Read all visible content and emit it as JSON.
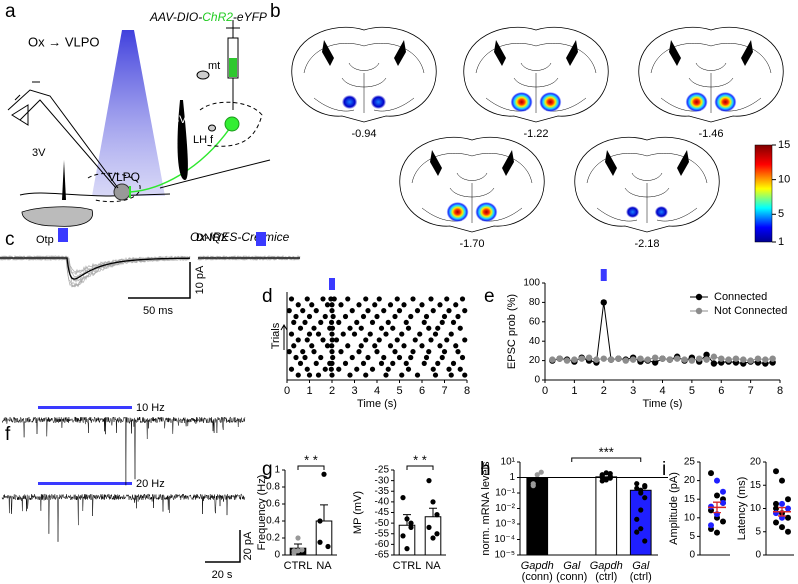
{
  "panel_letters": [
    "a",
    "b",
    "c",
    "d",
    "e",
    "f",
    "g",
    "h",
    "i"
  ],
  "schematic": {
    "title": "Ox → VLPO",
    "vector": [
      "AAV-DIO-",
      "ChR2",
      "-eYFP"
    ],
    "labels": [
      "mt",
      "3V",
      "LH",
      "f",
      "3V",
      "VLPO",
      "Otp"
    ],
    "mouse": "Ox-IRES-Cre mice"
  },
  "atlas": {
    "bregma": [
      "-0.94",
      "-1.22",
      "-1.46",
      "-1.70",
      "-2.18"
    ],
    "colorbar": {
      "lim": [
        1,
        15
      ],
      "ticks": [
        1,
        5,
        10,
        15
      ]
    }
  },
  "traces": {
    "drug": "DNQX",
    "scale_y": "10 pA",
    "scale_x": "50 ms"
  },
  "long_traces": {
    "freqs": [
      "10 Hz",
      "20 Hz"
    ],
    "scale_y": "20 pA",
    "scale_x": "20 s"
  },
  "chart_data": [
    {
      "type": "raster",
      "xlabel": "Time (s)",
      "ylabel": "Trials",
      "xlim": [
        0,
        8
      ],
      "xticks": [
        0,
        1,
        2,
        3,
        4,
        5,
        6,
        7,
        8
      ],
      "stimulus": 2,
      "trials": [
        [
          0.2,
          0.9,
          1.6,
          1.95,
          2.1,
          2.7,
          3.5,
          4.1,
          4.9,
          5.6,
          6.4,
          7.1,
          7.8
        ],
        [
          0.5,
          1.1,
          1.8,
          2.0,
          2.4,
          3.2,
          3.9,
          4.6,
          5.2,
          6.0,
          6.8,
          7.5
        ],
        [
          0.1,
          0.7,
          1.3,
          2.0,
          2.9,
          3.6,
          4.3,
          5.0,
          5.8,
          6.5,
          7.2,
          7.9
        ],
        [
          0.4,
          1.0,
          1.7,
          2.05,
          2.6,
          3.4,
          4.0,
          4.8,
          5.5,
          6.2,
          7.0,
          7.6
        ],
        [
          0.3,
          0.8,
          1.5,
          1.98,
          2.3,
          3.1,
          3.8,
          4.5,
          5.3,
          6.1,
          6.9,
          7.4
        ],
        [
          0.6,
          1.2,
          1.9,
          2.02,
          2.8,
          3.3,
          4.2,
          4.7,
          5.4,
          6.3,
          6.7,
          7.7
        ],
        [
          0.2,
          1.0,
          1.4,
          2.0,
          2.5,
          3.0,
          3.7,
          4.4,
          5.1,
          5.9,
          6.6,
          7.3
        ],
        [
          0.5,
          0.9,
          1.6,
          2.01,
          2.2,
          3.5,
          4.1,
          4.9,
          5.7,
          6.4,
          7.1,
          7.9
        ],
        [
          0.3,
          1.1,
          1.8,
          1.99,
          2.7,
          3.3,
          3.9,
          4.6,
          5.2,
          6.0,
          6.8,
          7.5
        ],
        [
          0.1,
          0.7,
          1.2,
          2.0,
          2.4,
          3.2,
          4.0,
          4.8,
          5.6,
          6.3,
          7.0,
          7.6
        ],
        [
          0.4,
          0.8,
          1.5,
          2.03,
          2.9,
          3.6,
          4.3,
          5.0,
          5.5,
          6.2,
          6.9,
          7.8
        ],
        [
          0.6,
          1.3,
          1.9,
          2.0,
          2.6,
          3.4,
          4.2,
          4.7,
          5.3,
          6.1,
          6.7,
          7.4
        ],
        [
          0.2,
          0.9,
          1.7,
          1.97,
          2.3,
          3.1,
          3.8,
          4.5,
          5.4,
          6.5,
          7.2,
          7.7
        ],
        [
          0.5,
          1.0,
          1.4,
          2.0,
          2.8,
          3.5,
          4.4,
          5.1,
          5.8,
          6.6,
          7.3,
          7.9
        ]
      ]
    },
    {
      "type": "line",
      "ylabel": "EPSC prob (%)",
      "xlabel": "Time (s)",
      "xlim": [
        0,
        8
      ],
      "xticks": [
        0,
        1,
        2,
        3,
        4,
        5,
        6,
        7,
        8
      ],
      "ylim": [
        0,
        100
      ],
      "yticks": [
        0,
        20,
        40,
        60,
        80,
        100
      ],
      "stimulus": 2,
      "x": [
        0.25,
        0.5,
        0.75,
        1,
        1.25,
        1.5,
        1.75,
        2,
        2.25,
        2.5,
        2.75,
        3,
        3.25,
        3.5,
        3.75,
        4,
        4.25,
        4.5,
        4.75,
        5,
        5.25,
        5.5,
        5.75,
        6,
        6.25,
        6.5,
        6.75,
        7,
        7.25,
        7.5,
        7.75
      ],
      "series": [
        {
          "name": "Connected",
          "color": "#000000",
          "values": [
            20,
            22,
            21,
            19,
            23,
            20,
            18,
            80,
            21,
            22,
            21,
            23,
            19,
            20,
            18,
            22,
            21,
            24,
            20,
            23,
            19,
            26,
            17,
            18,
            19,
            18,
            17,
            19,
            18,
            17,
            18
          ]
        },
        {
          "name": "Not Connected",
          "color": "#8c8c8c",
          "values": [
            21,
            22,
            20,
            21,
            22,
            23,
            21,
            22,
            21,
            22,
            20,
            21,
            22,
            21,
            23,
            22,
            21,
            22,
            21,
            20,
            22,
            21,
            24,
            22,
            21,
            22,
            21,
            20,
            22,
            21,
            22
          ]
        }
      ]
    },
    {
      "type": "bar",
      "ylabel": "Frequency (Hz)",
      "categories": [
        "CTRL",
        "NA"
      ],
      "values": [
        0.08,
        0.4
      ],
      "errors": [
        0.05,
        0.19
      ],
      "colors": [
        "#000000",
        "#ffffff"
      ],
      "points": [
        [
          0.05,
          0.2,
          0.06,
          0.02,
          0.05
        ],
        [
          0.15,
          0.95,
          0.1,
          0.4
        ]
      ],
      "ylim": [
        0,
        1
      ],
      "yticks": [
        0,
        0.2,
        0.4,
        0.6,
        0.8,
        1
      ],
      "significance": "* *"
    },
    {
      "type": "bar",
      "ylabel": "MP (mV)",
      "categories": [
        "CTRL",
        "NA"
      ],
      "values": [
        -51,
        -47
      ],
      "errors": [
        5,
        4
      ],
      "colors": [
        "#ffffff",
        "#ffffff"
      ],
      "points": [
        [
          -38,
          -48,
          -52,
          -56,
          -62,
          -50
        ],
        [
          -30,
          -40,
          -46,
          -52,
          -57,
          -55
        ]
      ],
      "ylim": [
        -65,
        -25
      ],
      "yticks": [
        -65,
        -60,
        -55,
        -50,
        -45,
        -40,
        -35,
        -30,
        -25
      ],
      "significance": "* *"
    },
    {
      "type": "bar",
      "log": true,
      "ylabel": "norm. mRNA levels",
      "categories": [
        "Gapdh (conn)",
        "Gal (conn)",
        "Gapdh (ctrl)",
        "Gal (ctrl)"
      ],
      "values": [
        0.9,
        null,
        1.1,
        0.15
      ],
      "colors": [
        "#000000",
        "#ffffff",
        "#ffffff",
        "#1f1fff"
      ],
      "points": [
        [
          0.4,
          1.5,
          2.2,
          0.3
        ],
        [],
        [
          0.6,
          0.8,
          1.2,
          1.5,
          2,
          0.9,
          1.3,
          0.7,
          1.8,
          1
        ],
        [
          0.2,
          0.1,
          0.05,
          0.002,
          0.0005,
          0.3,
          0.4,
          0.008,
          8e-05,
          0.0003,
          0.15,
          0.25
        ]
      ],
      "ylim": [
        1e-05,
        10
      ],
      "yticks": [
        {
          "value": 10,
          "label": "10¹"
        },
        1,
        {
          "value": 0.1,
          "label": "10⁻¹"
        },
        {
          "value": 0.01,
          "label": "10⁻²"
        },
        {
          "value": 0.001,
          "label": "10⁻³"
        },
        {
          "value": 0.0001,
          "label": "10⁻⁴"
        },
        {
          "value": 1e-05,
          "label": "10⁻⁵"
        }
      ],
      "significance": "***"
    },
    {
      "type": "strip",
      "ylabel": "Amplitude (pA)",
      "ylim": [
        0,
        25
      ],
      "yticks": [
        0,
        5,
        10,
        15,
        20,
        25
      ],
      "series": [
        {
          "color": "#000000",
          "values": [
            22,
            16,
            14,
            12,
            10,
            9,
            7,
            6,
            15
          ]
        },
        {
          "color": "#1f1fff",
          "values": [
            20,
            17,
            13,
            11,
            14,
            8
          ]
        }
      ],
      "mean": 12.8,
      "sem": 1.4,
      "mean_color": "#d62728"
    },
    {
      "type": "strip",
      "ylabel": "Latency (ms)",
      "ylim": [
        0,
        20
      ],
      "yticks": [
        0,
        5,
        10,
        15,
        20
      ],
      "series": [
        {
          "color": "#000000",
          "values": [
            18,
            16,
            12,
            10,
            9,
            8,
            7,
            6,
            5,
            11
          ]
        },
        {
          "color": "#1f1fff",
          "values": [
            11,
            10,
            9,
            8
          ]
        }
      ],
      "mean": 9.3,
      "sem": 0.9,
      "mean_color": "#d62728"
    }
  ]
}
